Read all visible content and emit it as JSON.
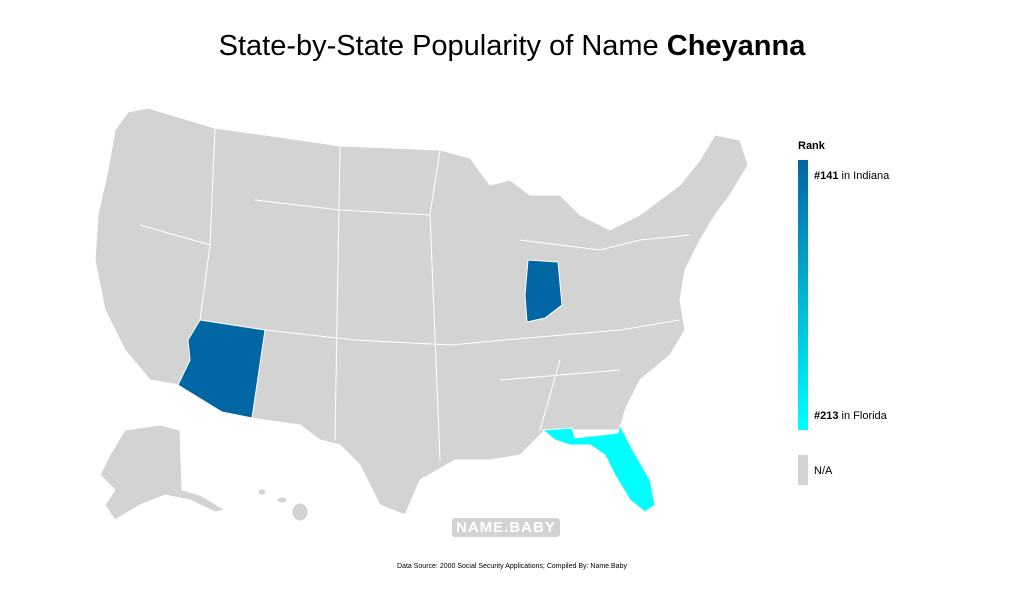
{
  "title": {
    "prefix": "State-by-State Popularity of Name",
    "name": "Cheyanna"
  },
  "map": {
    "type": "choropleth",
    "ranks": [
      141,
      141,
      213
    ],
    "color_scale": [
      "#0066a4",
      "#00ffff"
    ],
    "na_color": "#d3d3d3"
  },
  "legend": {
    "title": "Rank",
    "top": {
      "value": 141,
      "label": "#141",
      "text": "in Indiana"
    },
    "bottom": {
      "value": 213,
      "label": "#213",
      "text": "in Florida"
    },
    "na": "N/A"
  },
  "watermark": "NAME.BABY",
  "source": "Data Source: 2000 Social Security Applications; Compiled By: Name.Baby"
}
